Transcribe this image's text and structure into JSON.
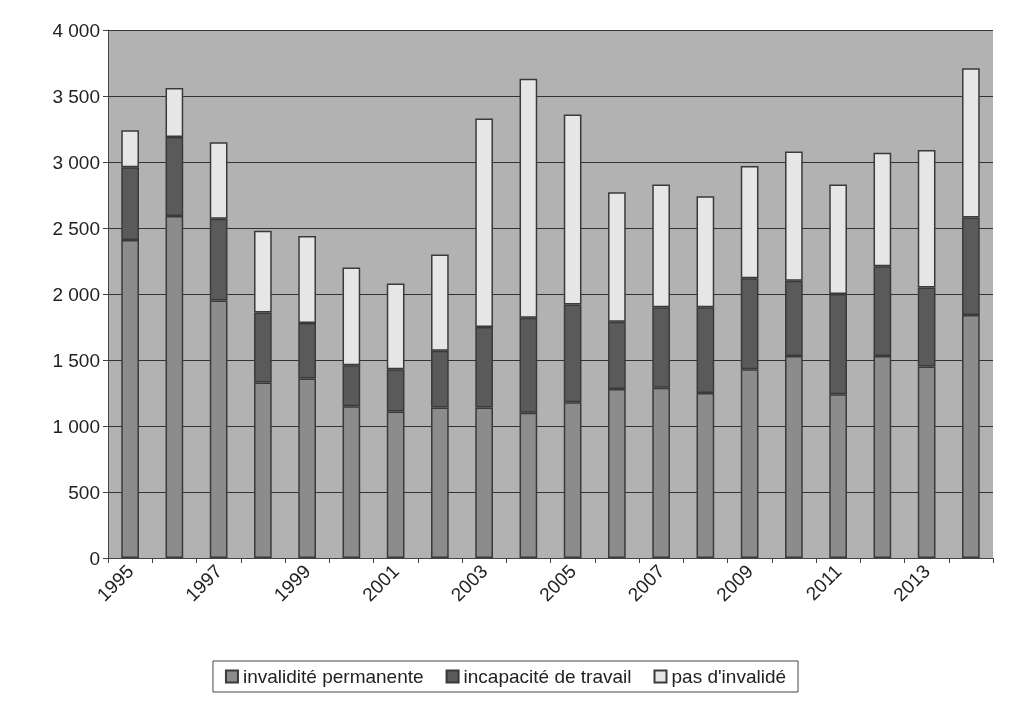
{
  "chart_data": {
    "type": "bar",
    "stacked": true,
    "categories": [
      "1995",
      null,
      "1997",
      null,
      "1999",
      null,
      "2001",
      null,
      "2003",
      null,
      "2005",
      null,
      "2007",
      null,
      "2009",
      null,
      "2011",
      null,
      "2013",
      null
    ],
    "series": [
      {
        "name": "invalidité permanente",
        "color": "#8c8c8c",
        "values": [
          2410,
          2590,
          1950,
          1330,
          1360,
          1150,
          1110,
          1140,
          1140,
          1100,
          1180,
          1280,
          1290,
          1250,
          1430,
          1530,
          1240,
          1530,
          1450,
          1840
        ]
      },
      {
        "name": "incapacité de travail",
        "color": "#5a5a5a",
        "values": [
          550,
          600,
          620,
          530,
          420,
          310,
          320,
          430,
          610,
          720,
          740,
          510,
          610,
          650,
          690,
          570,
          760,
          680,
          600,
          740
        ]
      },
      {
        "name": "pas d'invalidé",
        "color": "#e6e6e6",
        "values": [
          280,
          370,
          580,
          620,
          660,
          740,
          650,
          730,
          1580,
          1810,
          1440,
          980,
          930,
          840,
          850,
          980,
          830,
          860,
          1040,
          1130
        ]
      }
    ],
    "ylim": [
      0,
      4000
    ],
    "yticks": [
      0,
      500,
      {
        "value": 1000,
        "label": "1 000"
      },
      {
        "value": 1500,
        "label": "1 500"
      },
      {
        "value": 2000,
        "label": "2 000"
      },
      {
        "value": 2500,
        "label": "2 500"
      },
      {
        "value": 3000,
        "label": "3 000"
      },
      {
        "value": 3500,
        "label": "3 500"
      },
      {
        "value": 4000,
        "label": "4 000"
      }
    ],
    "grid": "y",
    "legend": "bottom"
  }
}
